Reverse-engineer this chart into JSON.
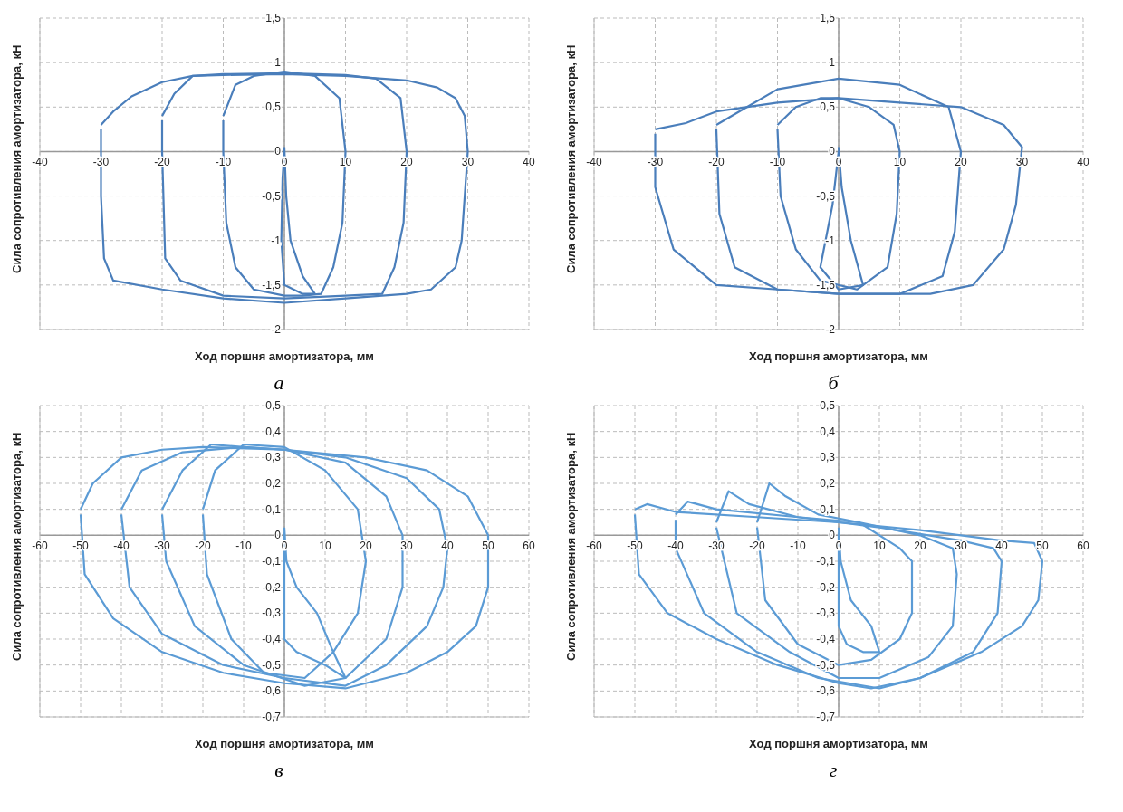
{
  "chart_data": [
    {
      "type": "line",
      "title": "а",
      "xlabel": "Ход поршня амортизатора, мм",
      "ylabel": "Сила сопротивления амортизатора, кН",
      "grid": true,
      "marker": "none",
      "xlim": [
        -40,
        40
      ],
      "xticks": [
        -40,
        -30,
        -20,
        -10,
        0,
        10,
        20,
        30,
        40
      ],
      "ylim": [
        -2,
        1.5
      ],
      "yticks": [
        -2,
        {
          "value": -1.5,
          "label": "-1,5"
        },
        -1,
        {
          "value": -0.5,
          "label": "-0,5"
        },
        0,
        {
          "value": 0.5,
          "label": "0,5"
        },
        1,
        {
          "value": 1.5,
          "label": "1,5"
        }
      ],
      "series": [
        {
          "color": "#4a7ebb",
          "x": [
            -30,
            -28,
            -25,
            -20,
            -15,
            -10,
            0,
            10,
            20,
            25,
            28,
            29.5,
            30,
            29.5,
            29,
            28,
            24,
            20,
            10,
            0,
            -10,
            -20,
            -28,
            -29.5,
            -30,
            -30
          ],
          "values": [
            0.3,
            0.45,
            0.62,
            0.78,
            0.85,
            0.86,
            0.87,
            0.85,
            0.8,
            0.72,
            0.6,
            0.4,
            0,
            -0.5,
            -1,
            -1.3,
            -1.55,
            -1.6,
            -1.65,
            -1.7,
            -1.65,
            -1.55,
            -1.45,
            -1.2,
            -0.5,
            0.25
          ]
        },
        {
          "color": "#4a7ebb",
          "x": [
            -20,
            -18,
            -15,
            -10,
            0,
            10,
            15,
            19,
            20,
            19.5,
            18,
            16,
            10,
            0,
            -10,
            -17,
            -19.5,
            -20,
            -20
          ],
          "values": [
            0.4,
            0.65,
            0.85,
            0.87,
            0.88,
            0.86,
            0.82,
            0.6,
            0,
            -0.8,
            -1.3,
            -1.6,
            -1.62,
            -1.65,
            -1.62,
            -1.45,
            -1.2,
            0,
            0.35
          ]
        },
        {
          "color": "#4a7ebb",
          "x": [
            -10,
            -8,
            -5,
            0,
            5,
            9,
            10,
            9.5,
            8,
            6,
            3,
            0,
            -5,
            -8,
            -9.5,
            -10,
            -10
          ],
          "values": [
            0.4,
            0.75,
            0.85,
            0.9,
            0.85,
            0.6,
            0,
            -0.8,
            -1.3,
            -1.6,
            -1.62,
            -1.62,
            -1.55,
            -1.3,
            -0.8,
            0,
            0.35
          ]
        },
        {
          "color": "#4a7ebb",
          "x": [
            0,
            0.3,
            1,
            3,
            5,
            3,
            0,
            -0.5,
            -0.3,
            0
          ],
          "values": [
            0.05,
            -0.5,
            -1,
            -1.4,
            -1.6,
            -1.6,
            -1.5,
            -1,
            -0.3,
            0
          ]
        }
      ]
    },
    {
      "type": "line",
      "title": "б",
      "xlabel": "Ход поршня амортизатора, мм",
      "ylabel": "Сила сопротивления амортизатора, кН",
      "grid": true,
      "marker": "none",
      "xlim": [
        -40,
        40
      ],
      "xticks": [
        -40,
        -30,
        -20,
        -10,
        0,
        10,
        20,
        30,
        40
      ],
      "ylim": [
        -2,
        1.5
      ],
      "yticks": [
        -2,
        {
          "value": -1.5,
          "label": "-1,5"
        },
        -1,
        {
          "value": -0.5,
          "label": "-0,5"
        },
        0,
        {
          "value": 0.5,
          "label": "0,5"
        },
        1,
        {
          "value": 1.5,
          "label": "1,5"
        }
      ],
      "series": [
        {
          "color": "#4a7ebb",
          "x": [
            -30,
            -25,
            -20,
            -10,
            0,
            10,
            20,
            27,
            30,
            29,
            27,
            22,
            15,
            0,
            -10,
            -20,
            -27,
            -30,
            -30
          ],
          "values": [
            0.25,
            0.32,
            0.45,
            0.55,
            0.6,
            0.55,
            0.5,
            0.3,
            0.05,
            -0.6,
            -1.1,
            -1.5,
            -1.6,
            -1.6,
            -1.55,
            -1.5,
            -1.1,
            -0.4,
            0.2
          ]
        },
        {
          "color": "#4a7ebb",
          "x": [
            -20,
            -15,
            -10,
            0,
            10,
            18,
            20,
            19,
            17,
            10,
            0,
            -10,
            -17,
            -19.5,
            -20
          ],
          "values": [
            0.3,
            0.5,
            0.7,
            0.82,
            0.75,
            0.5,
            0,
            -0.9,
            -1.4,
            -1.6,
            -1.6,
            -1.55,
            -1.3,
            -0.7,
            0.25
          ]
        },
        {
          "color": "#4a7ebb",
          "x": [
            -10,
            -7,
            -3,
            0,
            5,
            9,
            10,
            9.5,
            8,
            3,
            -3,
            -7,
            -9.5,
            -10
          ],
          "values": [
            0.3,
            0.5,
            0.6,
            0.6,
            0.5,
            0.3,
            0,
            -0.7,
            -1.3,
            -1.55,
            -1.45,
            -1.1,
            -0.5,
            0.25
          ]
        },
        {
          "color": "#4a7ebb",
          "x": [
            0,
            0.5,
            2,
            4,
            0,
            -3,
            -1,
            0
          ],
          "values": [
            0.05,
            -0.4,
            -1,
            -1.5,
            -1.55,
            -1.3,
            -0.6,
            0
          ]
        }
      ]
    },
    {
      "type": "line",
      "title": "в",
      "xlabel": "Ход поршня амортизатора, мм",
      "ylabel": "Сила сопротивления амортизатора, кН",
      "grid": true,
      "marker": "none",
      "xlim": [
        -60,
        60
      ],
      "xticks": [
        -60,
        -50,
        -40,
        -30,
        -20,
        -10,
        0,
        10,
        20,
        30,
        40,
        50,
        60
      ],
      "ylim": [
        -0.7,
        0.5
      ],
      "yticks": [
        {
          "value": -0.7,
          "label": "-0,7"
        },
        {
          "value": -0.6,
          "label": "-0,6"
        },
        {
          "value": -0.5,
          "label": "-0,5"
        },
        {
          "value": -0.4,
          "label": "-0,4"
        },
        {
          "value": -0.3,
          "label": "-0,3"
        },
        {
          "value": -0.2,
          "label": "-0,2"
        },
        {
          "value": -0.1,
          "label": "-0,1"
        },
        0,
        {
          "value": 0.1,
          "label": "0,1"
        },
        {
          "value": 0.2,
          "label": "0,2"
        },
        {
          "value": 0.3,
          "label": "0,3"
        },
        {
          "value": 0.4,
          "label": "0,4"
        },
        {
          "value": 0.5,
          "label": "0,5"
        }
      ],
      "series": [
        {
          "color": "#5b9bd5",
          "x": [
            -50,
            -47,
            -40,
            -30,
            -20,
            0,
            20,
            35,
            45,
            50,
            50,
            47,
            40,
            30,
            15,
            0,
            -15,
            -30,
            -42,
            -49,
            -50
          ],
          "values": [
            0.1,
            0.2,
            0.3,
            0.33,
            0.34,
            0.33,
            0.3,
            0.25,
            0.15,
            0,
            -0.2,
            -0.35,
            -0.45,
            -0.53,
            -0.59,
            -0.57,
            -0.53,
            -0.45,
            -0.32,
            -0.15,
            0.08
          ]
        },
        {
          "color": "#5b9bd5",
          "x": [
            -40,
            -35,
            -25,
            -10,
            0,
            15,
            30,
            38,
            40,
            39,
            35,
            25,
            15,
            0,
            -15,
            -30,
            -38,
            -40
          ],
          "values": [
            0.1,
            0.25,
            0.32,
            0.34,
            0.33,
            0.3,
            0.22,
            0.1,
            -0.05,
            -0.2,
            -0.35,
            -0.5,
            -0.58,
            -0.55,
            -0.5,
            -0.38,
            -0.2,
            0.08
          ]
        },
        {
          "color": "#5b9bd5",
          "x": [
            -30,
            -25,
            -18,
            -10,
            0,
            15,
            25,
            29,
            29,
            25,
            15,
            5,
            -10,
            -22,
            -29,
            -30
          ],
          "values": [
            0.1,
            0.25,
            0.35,
            0.34,
            0.33,
            0.28,
            0.15,
            0,
            -0.2,
            -0.4,
            -0.55,
            -0.58,
            -0.5,
            -0.35,
            -0.1,
            0.08
          ]
        },
        {
          "color": "#5b9bd5",
          "x": [
            -20,
            -17,
            -10,
            0,
            10,
            18,
            20,
            18,
            12,
            5,
            -5,
            -13,
            -19,
            -20
          ],
          "values": [
            0.1,
            0.25,
            0.35,
            0.34,
            0.25,
            0.1,
            -0.1,
            -0.3,
            -0.45,
            -0.55,
            -0.53,
            -0.4,
            -0.15,
            0.08
          ]
        },
        {
          "color": "#5b9bd5",
          "x": [
            0,
            0.5,
            3,
            8,
            12,
            15,
            10,
            3,
            0,
            0
          ],
          "values": [
            0.03,
            -0.1,
            -0.2,
            -0.3,
            -0.45,
            -0.55,
            -0.5,
            -0.45,
            -0.4,
            0.01
          ]
        }
      ]
    },
    {
      "type": "line",
      "title": "г",
      "xlabel": "Ход поршня амортизатора, мм",
      "ylabel": "Сила сопротивления амортизатора, кН",
      "grid": true,
      "marker": "none",
      "xlim": [
        -60,
        60
      ],
      "xticks": [
        -60,
        -50,
        -40,
        -30,
        -20,
        -10,
        0,
        10,
        20,
        30,
        40,
        50,
        60
      ],
      "ylim": [
        -0.7,
        0.5
      ],
      "yticks": [
        {
          "value": -0.7,
          "label": "-0,7"
        },
        {
          "value": -0.6,
          "label": "-0,6"
        },
        {
          "value": -0.5,
          "label": "-0,5"
        },
        {
          "value": -0.4,
          "label": "-0,4"
        },
        {
          "value": -0.3,
          "label": "-0,3"
        },
        {
          "value": -0.2,
          "label": "-0,2"
        },
        {
          "value": -0.1,
          "label": "-0,1"
        },
        0,
        {
          "value": 0.1,
          "label": "0,1"
        },
        {
          "value": 0.2,
          "label": "0,2"
        },
        {
          "value": 0.3,
          "label": "0,3"
        },
        {
          "value": 0.4,
          "label": "0,4"
        },
        {
          "value": 0.5,
          "label": "0,5"
        }
      ],
      "series": [
        {
          "color": "#5b9bd5",
          "x": [
            -50,
            -47,
            -40,
            -20,
            0,
            20,
            40,
            48,
            50,
            49,
            45,
            35,
            20,
            8,
            0,
            -15,
            -30,
            -42,
            -49,
            -50
          ],
          "values": [
            0.1,
            0.12,
            0.09,
            0.07,
            0.05,
            0.02,
            -0.02,
            -0.03,
            -0.1,
            -0.25,
            -0.35,
            -0.45,
            -0.55,
            -0.59,
            -0.57,
            -0.5,
            -0.4,
            -0.3,
            -0.15,
            0.08
          ]
        },
        {
          "color": "#5b9bd5",
          "x": [
            -40,
            -37,
            -30,
            -10,
            10,
            30,
            38,
            40,
            39,
            33,
            20,
            10,
            -5,
            -20,
            -33,
            -40,
            -40
          ],
          "values": [
            0.08,
            0.13,
            0.1,
            0.07,
            0.03,
            -0.02,
            -0.05,
            -0.1,
            -0.3,
            -0.45,
            -0.55,
            -0.59,
            -0.55,
            -0.45,
            -0.3,
            -0.05,
            0.06
          ]
        },
        {
          "color": "#5b9bd5",
          "x": [
            -30,
            -27,
            -22,
            -10,
            5,
            20,
            28,
            29,
            28,
            22,
            10,
            0,
            -12,
            -25,
            -30
          ],
          "values": [
            0.05,
            0.17,
            0.12,
            0.07,
            0.05,
            0,
            -0.05,
            -0.15,
            -0.35,
            -0.47,
            -0.55,
            -0.55,
            -0.45,
            -0.3,
            0.03
          ]
        },
        {
          "color": "#5b9bd5",
          "x": [
            -20,
            -17,
            -13,
            -5,
            5,
            15,
            18,
            18,
            15,
            8,
            0,
            -10,
            -18,
            -20
          ],
          "values": [
            0.05,
            0.2,
            0.15,
            0.08,
            0.05,
            -0.05,
            -0.1,
            -0.3,
            -0.4,
            -0.48,
            -0.5,
            -0.42,
            -0.25,
            0.03
          ]
        },
        {
          "color": "#5b9bd5",
          "x": [
            0,
            0.5,
            3,
            8,
            10,
            6,
            2,
            0,
            0
          ],
          "values": [
            0.03,
            -0.1,
            -0.25,
            -0.35,
            -0.45,
            -0.45,
            -0.42,
            -0.35,
            0.01
          ]
        }
      ]
    }
  ]
}
